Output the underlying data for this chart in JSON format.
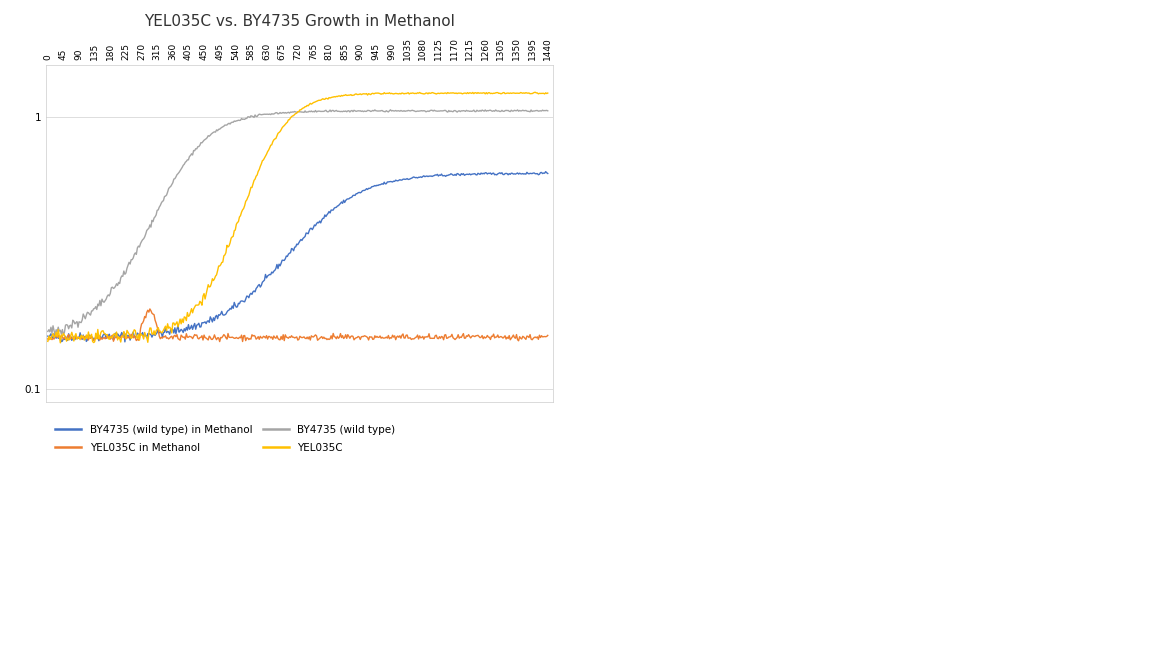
{
  "title": "YEL035C vs. BY4735 Growth in Methanol",
  "x_ticks": [
    0,
    45,
    90,
    135,
    180,
    225,
    270,
    315,
    360,
    405,
    450,
    495,
    540,
    585,
    630,
    675,
    720,
    765,
    810,
    855,
    900,
    945,
    990,
    1035,
    1080,
    1125,
    1170,
    1215,
    1260,
    1305,
    1350,
    1395,
    1440
  ],
  "yticks": [
    0.1,
    1.0
  ],
  "colors": {
    "blue": "#4472C4",
    "orange": "#ED7D31",
    "gray": "#A5A5A5",
    "gold": "#FFC000"
  },
  "legend": [
    {
      "label": "BY4735 (wild type) in Methanol",
      "color": "#4472C4"
    },
    {
      "label": "YEL035C in Methanol",
      "color": "#ED7D31"
    },
    {
      "label": "BY4735 (wild type)",
      "color": "#A5A5A5"
    },
    {
      "label": "YEL035C",
      "color": "#FFC000"
    }
  ]
}
